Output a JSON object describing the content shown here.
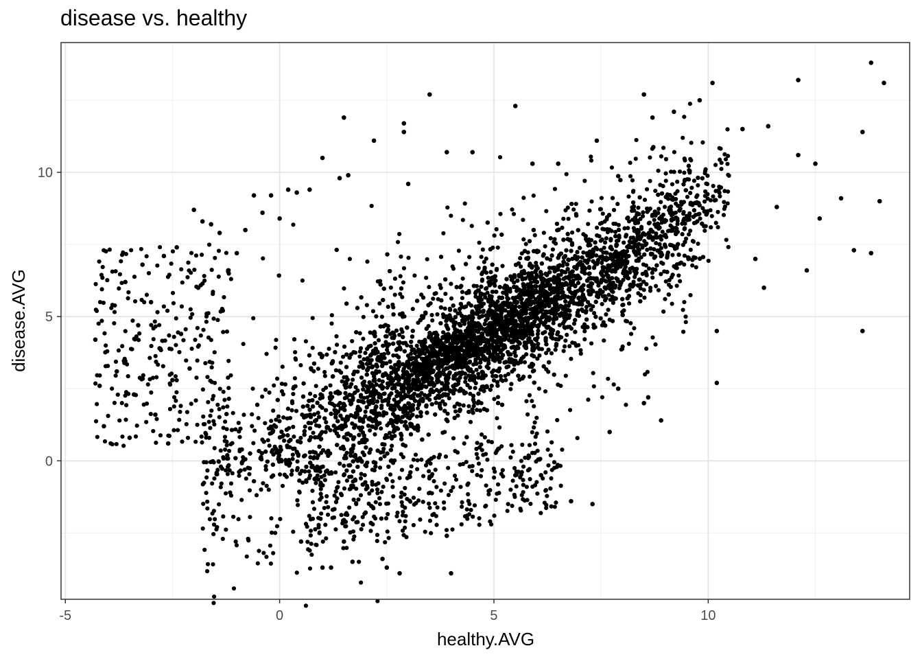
{
  "chart_data": {
    "type": "scatter",
    "title": "disease vs. healthy",
    "xlabel": "healthy.AVG",
    "ylabel": "disease.AVG",
    "xlim": [
      -5.1,
      14.7
    ],
    "ylim": [
      -4.8,
      14.5
    ],
    "x_ticks": [
      -5,
      0,
      5,
      10
    ],
    "x_tick_labels": [
      "-5",
      "0",
      "5",
      "10"
    ],
    "y_ticks": [
      0,
      5,
      10
    ],
    "y_tick_labels": [
      "0",
      "5",
      "10"
    ],
    "grid": true,
    "point_color": "#000000",
    "bulk_trend": {
      "description": "dense band of points following roughly y = x - 0.3 with spread",
      "x_range": [
        -1.5,
        10
      ],
      "slope": 0.82,
      "intercept": 0.4,
      "n_points": 6500
    },
    "points": [
      [
        -4.3,
        4.2
      ],
      [
        -4.2,
        2.6
      ],
      [
        -4.1,
        1.2
      ],
      [
        -3.9,
        5.4
      ],
      [
        -3.8,
        3.1
      ],
      [
        -3.6,
        6.2
      ],
      [
        -3.5,
        0.8
      ],
      [
        -3.4,
        2.3
      ],
      [
        -3.3,
        4.7
      ],
      [
        -3.2,
        6.8
      ],
      [
        -3.0,
        5.5
      ],
      [
        -2.9,
        1.6
      ],
      [
        -2.8,
        3.9
      ],
      [
        -2.7,
        7.1
      ],
      [
        -2.6,
        0.6
      ],
      [
        -2.5,
        2.8
      ],
      [
        -2.4,
        7.4
      ],
      [
        -2.3,
        4.4
      ],
      [
        -2.1,
        3.2
      ],
      [
        -2.0,
        8.7
      ],
      [
        -1.9,
        6.0
      ],
      [
        -1.8,
        8.3
      ],
      [
        -1.7,
        5.1
      ],
      [
        -1.6,
        8.2
      ],
      [
        -1.4,
        7.9
      ],
      [
        -1.2,
        6.6
      ],
      [
        -1.0,
        7.2
      ],
      [
        -0.8,
        8.0
      ],
      [
        -0.6,
        9.2
      ],
      [
        -0.4,
        8.6
      ],
      [
        -0.2,
        9.2
      ],
      [
        0.0,
        8.4
      ],
      [
        0.2,
        9.4
      ],
      [
        0.4,
        9.3
      ],
      [
        0.7,
        9.4
      ],
      [
        1.0,
        10.5
      ],
      [
        1.4,
        9.8
      ],
      [
        1.5,
        11.9
      ],
      [
        1.6,
        9.9
      ],
      [
        2.2,
        11.1
      ],
      [
        2.9,
        11.7
      ],
      [
        2.9,
        11.4
      ],
      [
        3.0,
        9.6
      ],
      [
        3.5,
        12.7
      ],
      [
        3.9,
        10.7
      ],
      [
        4.5,
        10.7
      ],
      [
        5.5,
        12.3
      ],
      [
        5.9,
        10.3
      ],
      [
        6.5,
        10.3
      ],
      [
        7.4,
        11.1
      ],
      [
        8.5,
        12.7
      ],
      [
        8.7,
        11.9
      ],
      [
        9.2,
        12.1
      ],
      [
        9.8,
        12.5
      ],
      [
        10.1,
        13.1
      ],
      [
        10.8,
        11.5
      ],
      [
        11.4,
        11.6
      ],
      [
        12.1,
        13.2
      ],
      [
        12.1,
        10.6
      ],
      [
        12.5,
        10.3
      ],
      [
        12.6,
        8.4
      ],
      [
        12.3,
        6.6
      ],
      [
        13.1,
        9.1
      ],
      [
        13.4,
        7.3
      ],
      [
        13.6,
        11.4
      ],
      [
        13.6,
        4.5
      ],
      [
        13.8,
        7.2
      ],
      [
        13.8,
        13.8
      ],
      [
        14.0,
        9.0
      ],
      [
        14.1,
        13.1
      ],
      [
        11.3,
        6.0
      ],
      [
        11.1,
        7.0
      ],
      [
        11.6,
        8.8
      ],
      [
        10.2,
        4.5
      ],
      [
        10.2,
        2.7
      ],
      [
        8.5,
        2.0
      ],
      [
        8.6,
        2.2
      ],
      [
        8.9,
        1.4
      ],
      [
        7.9,
        2.5
      ],
      [
        7.7,
        1.0
      ],
      [
        6.8,
        -1.4
      ],
      [
        7.3,
        -1.5
      ],
      [
        6.1,
        -0.5
      ],
      [
        5.5,
        -0.5
      ],
      [
        1.0,
        -3.7
      ],
      [
        1.2,
        -3.7
      ],
      [
        1.7,
        -3.5
      ],
      [
        2.4,
        -3.4
      ],
      [
        2.5,
        -3.7
      ],
      [
        2.8,
        -3.9
      ],
      [
        3.9,
        -2.6
      ],
      [
        4.0,
        -3.9
      ],
      [
        1.5,
        -2.8
      ],
      [
        0.5,
        -2.8
      ]
    ]
  }
}
